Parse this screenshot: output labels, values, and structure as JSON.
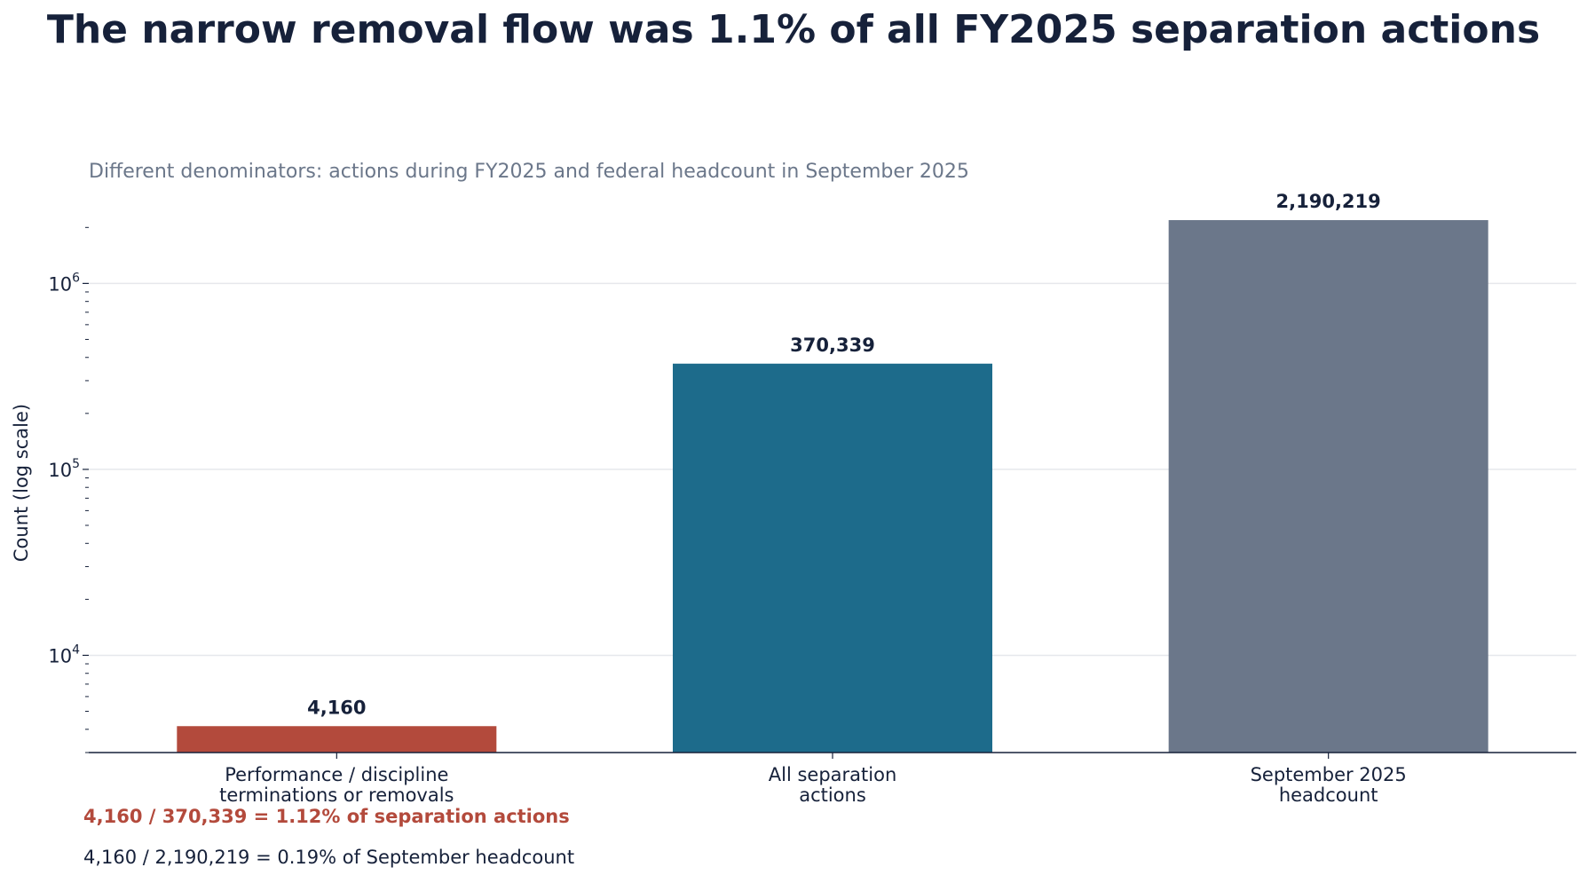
{
  "chart_data": {
    "type": "bar",
    "title": "The narrow removal flow was 1.1% of all FY2025 separation actions",
    "subtitle": "Different denominators: actions during FY2025 and federal headcount in September 2025",
    "ylabel": "Count (log scale)",
    "xlabel": "",
    "yscale": "log",
    "ylim": [
      3000,
      2500000
    ],
    "grid": true,
    "y_ticks": [
      {
        "value": 10000,
        "base": "10",
        "exp": "4"
      },
      {
        "value": 100000,
        "base": "10",
        "exp": "5"
      },
      {
        "value": 1000000,
        "base": "10",
        "exp": "6"
      }
    ],
    "categories": [
      [
        "Performance / discipline",
        "terminations or removals"
      ],
      [
        "All separation",
        "actions"
      ],
      [
        "September 2025",
        "headcount"
      ]
    ],
    "values": [
      4160,
      370339,
      2190219
    ],
    "value_labels": [
      "4,160",
      "370,339",
      "2,190,219"
    ],
    "bar_colors": [
      "#b34a3c",
      "#1d6b8b",
      "#6b778a"
    ]
  },
  "notes": {
    "highlight": "4,160 / 370,339 = 1.12% of separation actions",
    "secondary": "4,160 / 2,190,219 = 0.19% of September headcount"
  },
  "colors": {
    "text": "#16213a",
    "muted": "#6b778a",
    "grid": "#e6e8ec"
  }
}
